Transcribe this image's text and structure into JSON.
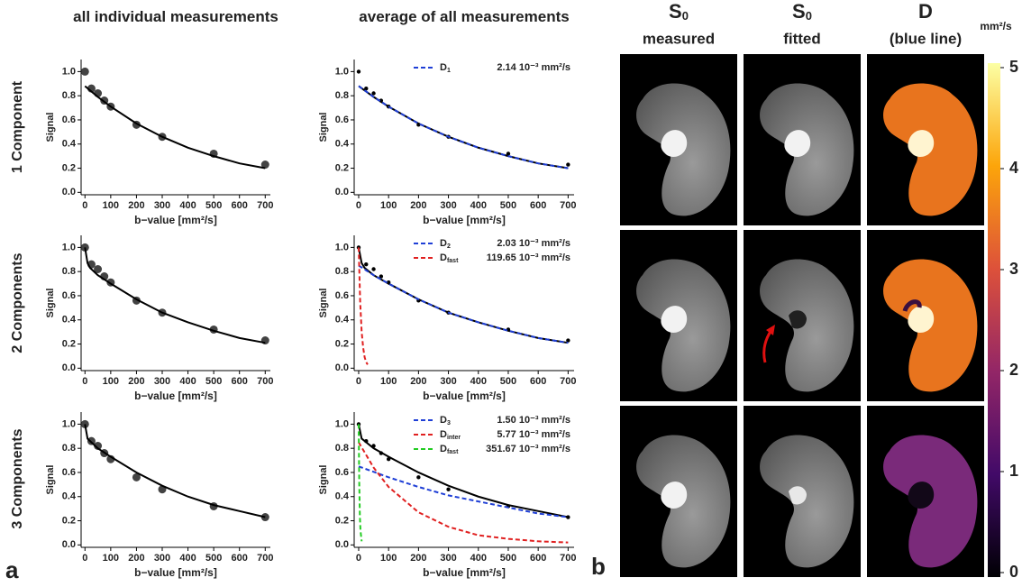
{
  "chart_data": [
    {
      "type": "line",
      "title": "all individual measurements",
      "xlabel": "b−value [mm²/s]",
      "ylabel": "Signal",
      "xlim": [
        -15,
        720
      ],
      "ylim": [
        -0.02,
        1.1
      ],
      "xticks": [
        0,
        100,
        200,
        300,
        400,
        500,
        600,
        700
      ],
      "yticks": [
        {
          "value": 0,
          "label": "0.0"
        },
        {
          "value": 0.2,
          "label": "0.2"
        },
        {
          "value": 0.4,
          "label": "0.4"
        },
        {
          "value": 0.6,
          "label": "0.6"
        },
        {
          "value": 0.8,
          "label": "0.8"
        },
        {
          "value": 1,
          "label": "1.0"
        }
      ],
      "series": [
        {
          "color": "#222222",
          "marker": "dot",
          "x": [
            0,
            25,
            50,
            75,
            100,
            200,
            300,
            500,
            700
          ],
          "values": [
            1.0,
            0.86,
            0.82,
            0.76,
            0.71,
            0.56,
            0.46,
            0.32,
            0.23
          ]
        },
        {
          "color": "#000000",
          "x": [
            0,
            50,
            100,
            200,
            300,
            400,
            500,
            600,
            700
          ],
          "values": [
            0.88,
            0.79,
            0.71,
            0.57,
            0.46,
            0.37,
            0.3,
            0.24,
            0.2
          ]
        }
      ]
    },
    {
      "type": "line",
      "title": "average of all measurements",
      "xlabel": "b−value [mm²/s]",
      "ylabel": "Signal",
      "xlim": [
        -15,
        720
      ],
      "ylim": [
        -0.02,
        1.1
      ],
      "xticks": [
        0,
        100,
        200,
        300,
        400,
        500,
        600,
        700
      ],
      "yticks": [
        {
          "value": 0,
          "label": "0.0"
        },
        {
          "value": 0.2,
          "label": "0.2"
        },
        {
          "value": 0.4,
          "label": "0.4"
        },
        {
          "value": 0.6,
          "label": "0.6"
        },
        {
          "value": 0.8,
          "label": "0.8"
        },
        {
          "value": 1,
          "label": "1.0"
        }
      ],
      "series": [
        {
          "color": "#000000",
          "marker": "dot",
          "x": [
            0,
            25,
            50,
            75,
            100,
            200,
            300,
            500,
            700
          ],
          "values": [
            1.0,
            0.86,
            0.82,
            0.76,
            0.71,
            0.56,
            0.46,
            0.32,
            0.23
          ]
        },
        {
          "color": "#000000",
          "x": [
            0,
            50,
            100,
            200,
            300,
            400,
            500,
            600,
            700
          ],
          "values": [
            0.88,
            0.79,
            0.71,
            0.57,
            0.46,
            0.37,
            0.3,
            0.24,
            0.2
          ]
        },
        {
          "name": "D",
          "sub": "1",
          "coefficient": "2.14 10⁻³ mm²/s",
          "color": "#1f3fd6",
          "dashed": true,
          "x": [
            0,
            50,
            100,
            200,
            300,
            400,
            500,
            600,
            700
          ],
          "values": [
            0.88,
            0.79,
            0.71,
            0.57,
            0.46,
            0.37,
            0.3,
            0.24,
            0.2
          ]
        }
      ]
    },
    {
      "type": "line",
      "xlabel": "b−value [mm²/s]",
      "ylabel": "Signal",
      "xlim": [
        -15,
        720
      ],
      "ylim": [
        -0.02,
        1.1
      ],
      "xticks": [
        0,
        100,
        200,
        300,
        400,
        500,
        600,
        700
      ],
      "yticks": [
        {
          "value": 0,
          "label": "0.0"
        },
        {
          "value": 0.2,
          "label": "0.2"
        },
        {
          "value": 0.4,
          "label": "0.4"
        },
        {
          "value": 0.6,
          "label": "0.6"
        },
        {
          "value": 0.8,
          "label": "0.8"
        },
        {
          "value": 1,
          "label": "1.0"
        }
      ],
      "series": [
        {
          "color": "#222222",
          "marker": "dot",
          "x": [
            0,
            25,
            50,
            75,
            100,
            200,
            300,
            500,
            700
          ],
          "values": [
            1.0,
            0.86,
            0.82,
            0.76,
            0.71,
            0.56,
            0.46,
            0.32,
            0.23
          ]
        },
        {
          "color": "#000000",
          "x": [
            0,
            10,
            20,
            50,
            100,
            200,
            300,
            400,
            500,
            600,
            700
          ],
          "values": [
            1.0,
            0.87,
            0.83,
            0.77,
            0.7,
            0.57,
            0.46,
            0.38,
            0.31,
            0.25,
            0.21
          ]
        }
      ]
    },
    {
      "type": "line",
      "xlabel": "b−value [mm²/s]",
      "ylabel": "Signal",
      "xlim": [
        -15,
        720
      ],
      "ylim": [
        -0.02,
        1.1
      ],
      "xticks": [
        0,
        100,
        200,
        300,
        400,
        500,
        600,
        700
      ],
      "yticks": [
        {
          "value": 0,
          "label": "0.0"
        },
        {
          "value": 0.2,
          "label": "0.2"
        },
        {
          "value": 0.4,
          "label": "0.4"
        },
        {
          "value": 0.6,
          "label": "0.6"
        },
        {
          "value": 0.8,
          "label": "0.8"
        },
        {
          "value": 1,
          "label": "1.0"
        }
      ],
      "series": [
        {
          "color": "#000000",
          "marker": "dot",
          "x": [
            0,
            25,
            50,
            75,
            100,
            200,
            300,
            500,
            700
          ],
          "values": [
            1.0,
            0.86,
            0.82,
            0.76,
            0.71,
            0.56,
            0.46,
            0.32,
            0.23
          ]
        },
        {
          "color": "#000000",
          "x": [
            0,
            10,
            20,
            50,
            100,
            200,
            300,
            400,
            500,
            600,
            700
          ],
          "values": [
            1.0,
            0.87,
            0.83,
            0.77,
            0.7,
            0.57,
            0.46,
            0.38,
            0.31,
            0.25,
            0.21
          ]
        },
        {
          "name": "D",
          "sub": "2",
          "coefficient": "2.03 10⁻³ mm²/s",
          "color": "#1f3fd6",
          "dashed": true,
          "x": [
            0,
            50,
            100,
            200,
            300,
            400,
            500,
            600,
            700
          ],
          "values": [
            0.85,
            0.77,
            0.7,
            0.57,
            0.46,
            0.38,
            0.31,
            0.25,
            0.21
          ]
        },
        {
          "name": "D",
          "sub": "fast",
          "coefficient": "119.65 10⁻³ mm²/s",
          "color": "#e02020",
          "dashed": true,
          "x": [
            0,
            5,
            10,
            15,
            20,
            25,
            30
          ],
          "values": [
            1.0,
            0.55,
            0.3,
            0.17,
            0.09,
            0.05,
            0.03
          ]
        }
      ]
    },
    {
      "type": "line",
      "xlabel": "b−value [mm²/s]",
      "ylabel": "Signal",
      "xlim": [
        -15,
        720
      ],
      "ylim": [
        -0.02,
        1.1
      ],
      "xticks": [
        0,
        100,
        200,
        300,
        400,
        500,
        600,
        700
      ],
      "yticks": [
        {
          "value": 0,
          "label": "0.0"
        },
        {
          "value": 0.2,
          "label": "0.2"
        },
        {
          "value": 0.4,
          "label": "0.4"
        },
        {
          "value": 0.6,
          "label": "0.6"
        },
        {
          "value": 0.8,
          "label": "0.8"
        },
        {
          "value": 1,
          "label": "1.0"
        }
      ],
      "series": [
        {
          "color": "#222222",
          "marker": "dot",
          "x": [
            0,
            25,
            50,
            75,
            100,
            200,
            300,
            500,
            700
          ],
          "values": [
            1.0,
            0.86,
            0.82,
            0.76,
            0.71,
            0.56,
            0.46,
            0.32,
            0.23
          ]
        },
        {
          "color": "#000000",
          "x": [
            0,
            10,
            50,
            100,
            200,
            300,
            400,
            500,
            600,
            700
          ],
          "values": [
            1.0,
            0.88,
            0.8,
            0.73,
            0.6,
            0.49,
            0.4,
            0.33,
            0.28,
            0.23
          ]
        }
      ]
    },
    {
      "type": "line",
      "xlabel": "b−value [mm²/s]",
      "ylabel": "Signal",
      "xlim": [
        -15,
        720
      ],
      "ylim": [
        -0.02,
        1.1
      ],
      "xticks": [
        0,
        100,
        200,
        300,
        400,
        500,
        600,
        700
      ],
      "yticks": [
        {
          "value": 0,
          "label": "0.0"
        },
        {
          "value": 0.2,
          "label": "0.2"
        },
        {
          "value": 0.4,
          "label": "0.4"
        },
        {
          "value": 0.6,
          "label": "0.6"
        },
        {
          "value": 0.8,
          "label": "0.8"
        },
        {
          "value": 1,
          "label": "1.0"
        }
      ],
      "series": [
        {
          "color": "#000000",
          "marker": "dot",
          "x": [
            0,
            25,
            50,
            75,
            100,
            200,
            300,
            500,
            700
          ],
          "values": [
            1.0,
            0.86,
            0.82,
            0.76,
            0.71,
            0.56,
            0.46,
            0.32,
            0.23
          ]
        },
        {
          "color": "#000000",
          "x": [
            0,
            10,
            50,
            100,
            200,
            300,
            400,
            500,
            600,
            700
          ],
          "values": [
            1.0,
            0.88,
            0.8,
            0.73,
            0.6,
            0.49,
            0.4,
            0.33,
            0.28,
            0.23
          ]
        },
        {
          "name": "D",
          "sub": "3",
          "coefficient": "1.50 10⁻³ mm²/s",
          "color": "#1f3fd6",
          "dashed": true,
          "x": [
            0,
            100,
            200,
            300,
            400,
            500,
            600,
            700
          ],
          "values": [
            0.65,
            0.56,
            0.48,
            0.41,
            0.36,
            0.31,
            0.26,
            0.23
          ]
        },
        {
          "name": "D",
          "sub": "inter",
          "coefficient": "5.77 10⁻³ mm²/s",
          "color": "#e02020",
          "dashed": true,
          "x": [
            0,
            50,
            100,
            200,
            300,
            400,
            500,
            600,
            700
          ],
          "values": [
            0.85,
            0.64,
            0.48,
            0.27,
            0.15,
            0.08,
            0.05,
            0.03,
            0.02
          ]
        },
        {
          "name": "D",
          "sub": "fast",
          "coefficient": "351.67 10⁻³ mm²/s",
          "color": "#22cc22",
          "dashed": true,
          "x": [
            0,
            2,
            4,
            6,
            10
          ],
          "values": [
            1.0,
            0.5,
            0.24,
            0.12,
            0.03
          ]
        }
      ]
    }
  ],
  "figure": {
    "row_labels": [
      "1 Component",
      "2 Components",
      "3 Components"
    ],
    "panel_labels": [
      "a",
      "b"
    ],
    "column_headers": [
      {
        "main": "S",
        "sub": "0",
        "line2": "measured"
      },
      {
        "main": "S",
        "sub": "0",
        "line2": "fitted"
      },
      {
        "main": "D",
        "line2": "(blue line)"
      }
    ],
    "colorbar": {
      "unit": "mm²/s",
      "lim": [
        0,
        5
      ],
      "ticks": [
        0,
        1,
        2,
        3,
        4,
        5
      ]
    }
  }
}
